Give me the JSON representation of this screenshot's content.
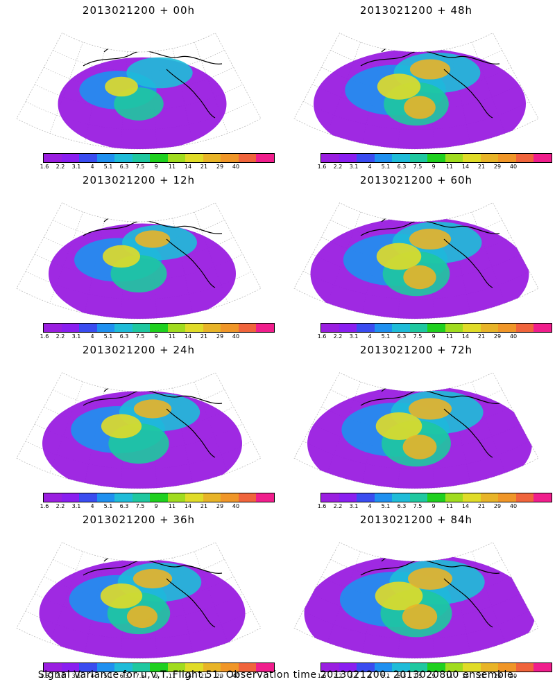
{
  "panels": [
    {
      "title": "2013021200 + 00h",
      "col": 0,
      "row": 0,
      "level": 0.35
    },
    {
      "title": "2013021200 + 48h",
      "col": 1,
      "row": 0,
      "level": 0.7
    },
    {
      "title": "2013021200 + 12h",
      "col": 0,
      "row": 1,
      "level": 0.5
    },
    {
      "title": "2013021200 + 60h",
      "col": 1,
      "row": 1,
      "level": 0.75
    },
    {
      "title": "2013021200 + 24h",
      "col": 0,
      "row": 2,
      "level": 0.6
    },
    {
      "title": "2013021200 + 72h",
      "col": 1,
      "row": 2,
      "level": 0.8
    },
    {
      "title": "2013021200 + 36h",
      "col": 0,
      "row": 3,
      "level": 0.65
    },
    {
      "title": "2013021200 + 84h",
      "col": 1,
      "row": 3,
      "level": 0.85
    }
  ],
  "colorbar": {
    "ticks": [
      "1.6",
      "2.2",
      "3.1",
      "4",
      "5.1",
      "6.3",
      "7.5",
      "9",
      "11",
      "14",
      "21",
      "29",
      "40"
    ],
    "colors": [
      "#9a1ee0",
      "#8a1ef0",
      "#3a4cf0",
      "#1e90f0",
      "#1ebcd8",
      "#1ec8a0",
      "#1ed01e",
      "#a0dc1e",
      "#e0dc28",
      "#e8b428",
      "#f09628",
      "#f0643c",
      "#f01e8c"
    ]
  },
  "caption": "Signal Variance for u,v,T. Flight 51. Observation time 2013021200. 2013020800 ensemble."
}
